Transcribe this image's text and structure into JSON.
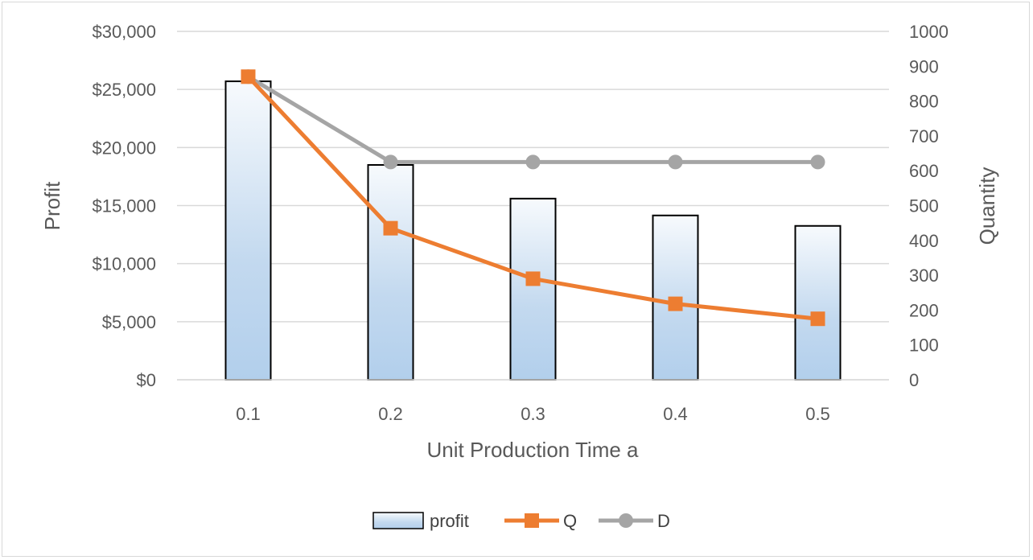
{
  "chart_data": {
    "type": "bar",
    "categories": [
      "0.1",
      "0.2",
      "0.3",
      "0.4",
      "0.5"
    ],
    "xlabel": "Unit Production Time a",
    "ylabel": "Profit",
    "y2label": "Quantity",
    "ylim": [
      0,
      30000
    ],
    "y2lim": [
      0,
      1000
    ],
    "yticks": [
      "$0",
      "$5,000",
      "$10,000",
      "$15,000",
      "$20,000",
      "$25,000",
      "$30,000"
    ],
    "y2ticks": [
      "0",
      "100",
      "200",
      "300",
      "400",
      "500",
      "600",
      "700",
      "800",
      "900",
      "1000"
    ],
    "grid": true,
    "legend_position": "bottom",
    "series": [
      {
        "name": "profit",
        "type": "bar",
        "axis": "left",
        "values": [
          25700,
          18500,
          15600,
          14150,
          13250
        ],
        "color": "#9dc3e6"
      },
      {
        "name": "Q",
        "type": "line",
        "axis": "right",
        "marker": "square",
        "values": [
          870,
          435,
          290,
          218,
          175
        ],
        "color": "#ed7d31"
      },
      {
        "name": "D",
        "type": "line",
        "axis": "right",
        "marker": "circle",
        "values": [
          870,
          625,
          625,
          625,
          625
        ],
        "color": "#a5a5a5"
      }
    ]
  }
}
